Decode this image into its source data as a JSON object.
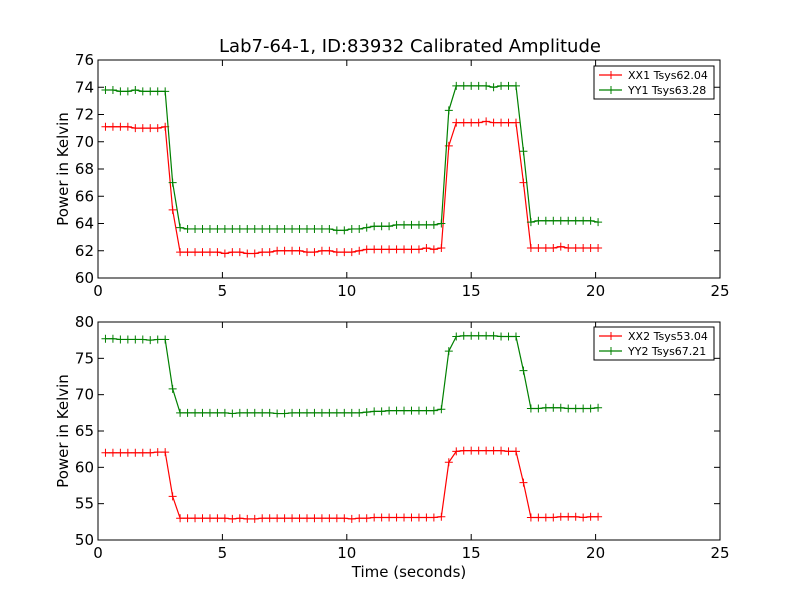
{
  "title": "Lab7-64-1, ID:83932 Calibrated Amplitude",
  "chart_data": [
    {
      "type": "line",
      "xlabel": "",
      "ylabel": "Power in Kelvin",
      "xlim": [
        0,
        25
      ],
      "ylim": [
        60,
        76
      ],
      "x_ticks": [
        "0",
        "5",
        "10",
        "15",
        "20",
        "25"
      ],
      "y_ticks": [
        "60",
        "62",
        "64",
        "66",
        "68",
        "70",
        "72",
        "74",
        "76"
      ],
      "grid": false,
      "legend_position": "top-right",
      "x": [
        0.3,
        0.6,
        0.9,
        1.2,
        1.5,
        1.8,
        2.1,
        2.4,
        2.7,
        3.0,
        3.3,
        3.6,
        3.9,
        4.2,
        4.5,
        4.8,
        5.1,
        5.4,
        5.7,
        6.0,
        6.3,
        6.6,
        6.9,
        7.2,
        7.5,
        7.8,
        8.1,
        8.4,
        8.7,
        9.0,
        9.3,
        9.6,
        9.9,
        10.2,
        10.5,
        10.8,
        11.1,
        11.4,
        11.7,
        12.0,
        12.3,
        12.6,
        12.9,
        13.2,
        13.5,
        13.8,
        14.1,
        14.4,
        14.7,
        15.0,
        15.3,
        15.6,
        15.9,
        16.2,
        16.5,
        16.8,
        17.1,
        17.4,
        17.7,
        18.0,
        18.3,
        18.6,
        18.9,
        19.2,
        19.5,
        19.8,
        20.1
      ],
      "series": [
        {
          "name": "XX1 Tsys62.04",
          "color": "#ff0000",
          "values": [
            71.1,
            71.1,
            71.1,
            71.1,
            71.0,
            71.0,
            71.0,
            71.0,
            71.1,
            65.0,
            61.9,
            61.9,
            61.9,
            61.9,
            61.9,
            61.9,
            61.8,
            61.9,
            61.9,
            61.8,
            61.8,
            61.9,
            61.9,
            62.0,
            62.0,
            62.0,
            62.0,
            61.9,
            61.9,
            62.0,
            62.0,
            61.9,
            61.9,
            61.9,
            62.0,
            62.1,
            62.1,
            62.1,
            62.1,
            62.1,
            62.1,
            62.1,
            62.1,
            62.2,
            62.1,
            62.2,
            69.7,
            71.4,
            71.4,
            71.4,
            71.4,
            71.5,
            71.4,
            71.4,
            71.4,
            71.4,
            67.0,
            62.2,
            62.2,
            62.2,
            62.2,
            62.3,
            62.2,
            62.2,
            62.2,
            62.2,
            62.2
          ]
        },
        {
          "name": "YY1 Tsys63.28",
          "color": "#008000",
          "values": [
            73.8,
            73.8,
            73.7,
            73.7,
            73.8,
            73.7,
            73.7,
            73.7,
            73.7,
            67.0,
            63.7,
            63.6,
            63.6,
            63.6,
            63.6,
            63.6,
            63.6,
            63.6,
            63.6,
            63.6,
            63.6,
            63.6,
            63.6,
            63.6,
            63.6,
            63.6,
            63.6,
            63.6,
            63.6,
            63.6,
            63.6,
            63.5,
            63.5,
            63.6,
            63.6,
            63.7,
            63.8,
            63.8,
            63.8,
            63.9,
            63.9,
            63.9,
            63.9,
            63.9,
            63.9,
            64.0,
            72.3,
            74.1,
            74.1,
            74.1,
            74.1,
            74.1,
            74.0,
            74.1,
            74.1,
            74.1,
            69.3,
            64.1,
            64.2,
            64.2,
            64.2,
            64.2,
            64.2,
            64.2,
            64.2,
            64.2,
            64.1
          ]
        }
      ]
    },
    {
      "type": "line",
      "xlabel": "Time (seconds)",
      "ylabel": "Power in Kelvin",
      "xlim": [
        0,
        25
      ],
      "ylim": [
        50,
        80
      ],
      "x_ticks": [
        "0",
        "5",
        "10",
        "15",
        "20",
        "25"
      ],
      "y_ticks": [
        "50",
        "55",
        "60",
        "65",
        "70",
        "75",
        "80"
      ],
      "grid": false,
      "legend_position": "top-right",
      "x": [
        0.3,
        0.6,
        0.9,
        1.2,
        1.5,
        1.8,
        2.1,
        2.4,
        2.7,
        3.0,
        3.3,
        3.6,
        3.9,
        4.2,
        4.5,
        4.8,
        5.1,
        5.4,
        5.7,
        6.0,
        6.3,
        6.6,
        6.9,
        7.2,
        7.5,
        7.8,
        8.1,
        8.4,
        8.7,
        9.0,
        9.3,
        9.6,
        9.9,
        10.2,
        10.5,
        10.8,
        11.1,
        11.4,
        11.7,
        12.0,
        12.3,
        12.6,
        12.9,
        13.2,
        13.5,
        13.8,
        14.1,
        14.4,
        14.7,
        15.0,
        15.3,
        15.6,
        15.9,
        16.2,
        16.5,
        16.8,
        17.1,
        17.4,
        17.7,
        18.0,
        18.3,
        18.6,
        18.9,
        19.2,
        19.5,
        19.8,
        20.1
      ],
      "series": [
        {
          "name": "XX2 Tsys53.04",
          "color": "#ff0000",
          "values": [
            62.0,
            62.0,
            62.0,
            62.0,
            62.0,
            62.0,
            62.0,
            62.1,
            62.1,
            56.0,
            53.0,
            53.0,
            53.0,
            53.0,
            53.0,
            53.0,
            53.0,
            52.9,
            53.0,
            52.9,
            52.9,
            53.0,
            53.0,
            53.0,
            53.0,
            53.0,
            53.0,
            53.0,
            53.0,
            53.0,
            53.0,
            53.0,
            53.0,
            52.9,
            53.0,
            53.0,
            53.1,
            53.1,
            53.1,
            53.1,
            53.1,
            53.1,
            53.1,
            53.1,
            53.1,
            53.2,
            60.7,
            62.2,
            62.3,
            62.3,
            62.3,
            62.3,
            62.3,
            62.3,
            62.2,
            62.2,
            57.9,
            53.1,
            53.1,
            53.1,
            53.1,
            53.2,
            53.2,
            53.2,
            53.1,
            53.2,
            53.2
          ]
        },
        {
          "name": "YY2 Tsys67.21",
          "color": "#008000",
          "values": [
            77.7,
            77.7,
            77.6,
            77.6,
            77.6,
            77.6,
            77.5,
            77.6,
            77.6,
            70.8,
            67.5,
            67.5,
            67.5,
            67.5,
            67.5,
            67.5,
            67.5,
            67.4,
            67.5,
            67.5,
            67.5,
            67.5,
            67.5,
            67.4,
            67.4,
            67.5,
            67.5,
            67.5,
            67.5,
            67.5,
            67.5,
            67.5,
            67.5,
            67.5,
            67.5,
            67.6,
            67.7,
            67.7,
            67.8,
            67.8,
            67.8,
            67.8,
            67.8,
            67.8,
            67.8,
            68.0,
            76.0,
            78.0,
            78.1,
            78.1,
            78.1,
            78.1,
            78.1,
            78.0,
            78.0,
            78.0,
            73.3,
            68.1,
            68.1,
            68.2,
            68.2,
            68.2,
            68.1,
            68.1,
            68.1,
            68.1,
            68.2
          ]
        }
      ]
    }
  ]
}
